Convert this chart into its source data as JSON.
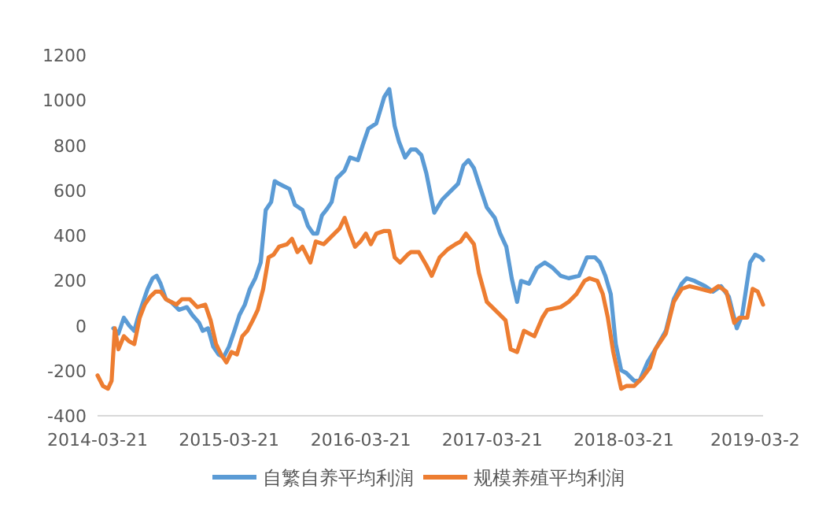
{
  "chart_data": {
    "type": "line",
    "xlim": [
      "2014-03-21",
      "2019-04-12"
    ],
    "xticks": [
      "2014-03-21",
      "2015-03-21",
      "2016-03-21",
      "2017-03-21",
      "2018-03-21",
      {
        "value": "2019-03-21",
        "label": "2019-03-2"
      }
    ],
    "ylim": [
      -400,
      1200
    ],
    "yticks": [
      -400,
      -200,
      0,
      200,
      400,
      600,
      800,
      1000,
      1200
    ],
    "grid": false,
    "legend": "bottom",
    "series": [
      {
        "name": "自繁自养平均利润",
        "color": "#5b9bd5",
        "x": [
          "2014-05-04",
          "2014-05-18",
          "2014-06-02",
          "2014-06-17",
          "2014-07-01",
          "2014-07-11",
          "2014-07-23",
          "2014-08-07",
          "2014-08-21",
          "2014-09-01",
          "2014-09-12",
          "2014-09-27",
          "2014-10-11",
          "2014-11-02",
          "2014-11-24",
          "2014-12-09",
          "2014-12-28",
          "2015-01-07",
          "2015-01-22",
          "2015-02-05",
          "2015-02-20",
          "2015-03-06",
          "2015-03-21",
          "2015-04-05",
          "2015-04-19",
          "2015-05-04",
          "2015-05-18",
          "2015-06-02",
          "2015-06-17",
          "2015-07-01",
          "2015-07-16",
          "2015-07-26",
          "2015-08-07",
          "2015-08-21",
          "2015-09-05",
          "2015-09-20",
          "2015-10-11",
          "2015-10-26",
          "2015-11-10",
          "2015-11-21",
          "2015-12-04",
          "2015-12-16",
          "2015-12-31",
          "2016-01-14",
          "2016-02-05",
          "2016-02-20",
          "2016-03-13",
          "2016-03-27",
          "2016-04-11",
          "2016-05-03",
          "2016-05-25",
          "2016-06-08",
          "2016-06-23",
          "2016-07-05",
          "2016-07-22",
          "2016-08-07",
          "2016-08-21",
          "2016-09-05",
          "2016-09-19",
          "2016-10-11",
          "2016-11-02",
          "2016-11-24",
          "2016-12-16",
          "2016-12-31",
          "2017-01-14",
          "2017-01-29",
          "2017-02-12",
          "2017-03-06",
          "2017-03-28",
          "2017-04-12",
          "2017-04-29",
          "2017-05-14",
          "2017-05-29",
          "2017-06-09",
          "2017-07-01",
          "2017-07-23",
          "2017-08-14",
          "2017-09-05",
          "2017-09-27",
          "2017-10-19",
          "2017-11-17",
          "2017-12-09",
          "2017-12-31",
          "2018-01-14",
          "2018-01-29",
          "2018-02-13",
          "2018-02-27",
          "2018-03-14",
          "2018-03-28",
          "2018-04-19",
          "2018-05-04",
          "2018-05-26",
          "2018-06-17",
          "2018-07-16",
          "2018-08-07",
          "2018-08-29",
          "2018-09-12",
          "2018-10-04",
          "2018-11-02",
          "2018-11-24",
          "2018-12-16",
          "2019-01-07",
          "2019-01-29",
          "2019-02-13",
          "2019-03-07",
          "2019-03-21",
          "2019-04-05",
          "2019-04-12"
        ],
        "values": [
          -12,
          -35,
          35,
          0,
          -23,
          35,
          93,
          163,
          210,
          221,
          186,
          117,
          105,
          70,
          82,
          47,
          12,
          -23,
          -12,
          -93,
          -128,
          -140,
          -93,
          -23,
          47,
          93,
          163,
          210,
          280,
          513,
          548,
          641,
          629,
          618,
          606,
          536,
          513,
          443,
          408,
          408,
          489,
          513,
          548,
          653,
          688,
          746,
          734,
          804,
          874,
          897,
          1014,
          1049,
          886,
          816,
          746,
          781,
          781,
          757,
          676,
          501,
          559,
          594,
          629,
          711,
          734,
          699,
          629,
          524,
          478,
          408,
          350,
          210,
          105,
          198,
          186,
          256,
          280,
          256,
          221,
          210,
          221,
          303,
          303,
          280,
          221,
          140,
          -82,
          -198,
          -210,
          -245,
          -245,
          -163,
          -105,
          -23,
          117,
          186,
          210,
          198,
          175,
          151,
          175,
          128,
          -12,
          47,
          280,
          315,
          303,
          291
        ]
      },
      {
        "name": "规模养殖平均利润",
        "color": "#ed7d31",
        "x": [
          "2014-03-21",
          "2014-04-05",
          "2014-04-19",
          "2014-04-29",
          "2014-05-08",
          "2014-05-18",
          "2014-06-02",
          "2014-06-17",
          "2014-07-01",
          "2014-07-16",
          "2014-07-30",
          "2014-08-14",
          "2014-08-29",
          "2014-09-12",
          "2014-09-27",
          "2014-10-11",
          "2014-10-26",
          "2014-11-10",
          "2014-12-02",
          "2014-12-23",
          "2015-01-14",
          "2015-01-29",
          "2015-02-13",
          "2015-02-27",
          "2015-03-14",
          "2015-03-28",
          "2015-04-12",
          "2015-04-27",
          "2015-05-11",
          "2015-05-26",
          "2015-06-09",
          "2015-06-24",
          "2015-07-09",
          "2015-07-23",
          "2015-08-07",
          "2015-08-29",
          "2015-09-12",
          "2015-09-27",
          "2015-10-11",
          "2015-11-02",
          "2015-11-17",
          "2015-12-09",
          "2015-12-31",
          "2016-01-22",
          "2016-02-05",
          "2016-02-20",
          "2016-03-05",
          "2016-03-20",
          "2016-04-04",
          "2016-04-18",
          "2016-05-03",
          "2016-05-25",
          "2016-06-08",
          "2016-06-23",
          "2016-07-08",
          "2016-07-29",
          "2016-08-07",
          "2016-08-29",
          "2016-09-19",
          "2016-10-04",
          "2016-10-26",
          "2016-11-17",
          "2016-12-09",
          "2016-12-23",
          "2017-01-07",
          "2017-01-29",
          "2017-02-12",
          "2017-03-06",
          "2017-04-05",
          "2017-04-27",
          "2017-05-11",
          "2017-05-29",
          "2017-06-17",
          "2017-07-16",
          "2017-08-07",
          "2017-08-21",
          "2017-09-27",
          "2017-10-19",
          "2017-11-10",
          "2017-12-02",
          "2017-12-16",
          "2018-01-07",
          "2018-01-22",
          "2018-02-05",
          "2018-02-20",
          "2018-03-14",
          "2018-03-28",
          "2018-04-19",
          "2018-05-11",
          "2018-06-02",
          "2018-06-17",
          "2018-07-16",
          "2018-08-07",
          "2018-08-29",
          "2018-09-20",
          "2018-10-19",
          "2018-11-17",
          "2018-12-09",
          "2018-12-31",
          "2019-01-22",
          "2019-02-05",
          "2019-02-27",
          "2019-03-14",
          "2019-03-28",
          "2019-04-12"
        ],
        "values": [
          -221,
          -268,
          -280,
          -245,
          -12,
          -105,
          -47,
          -70,
          -82,
          35,
          93,
          128,
          151,
          151,
          117,
          105,
          93,
          117,
          117,
          82,
          93,
          23,
          -82,
          -128,
          -163,
          -117,
          -128,
          -47,
          -23,
          23,
          70,
          163,
          303,
          315,
          350,
          361,
          385,
          326,
          350,
          280,
          373,
          361,
          396,
          431,
          478,
          408,
          350,
          373,
          408,
          361,
          408,
          420,
          420,
          303,
          280,
          315,
          326,
          326,
          268,
          221,
          303,
          338,
          361,
          373,
          408,
          361,
          233,
          105,
          58,
          23,
          -105,
          -117,
          -23,
          -47,
          35,
          70,
          82,
          105,
          140,
          198,
          210,
          198,
          140,
          35,
          -117,
          -280,
          -268,
          -268,
          -233,
          -186,
          -105,
          -35,
          105,
          163,
          175,
          163,
          151,
          175,
          151,
          12,
          35,
          35,
          163,
          151,
          93
        ]
      }
    ]
  }
}
